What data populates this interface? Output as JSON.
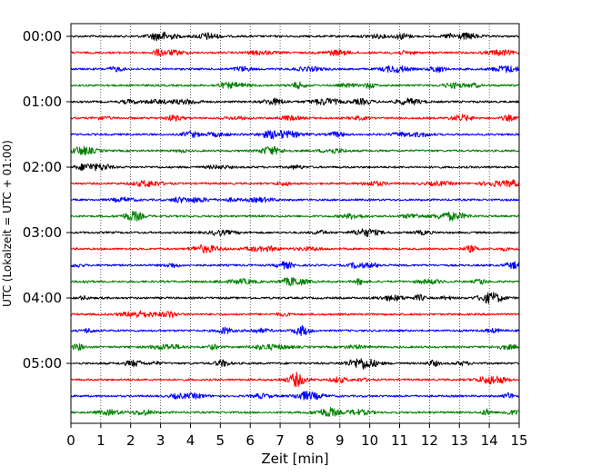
{
  "chart_data": {
    "type": "line",
    "title": "",
    "xlabel": "Zeit  [min]",
    "ylabel": "UTC (Lokalzeit = UTC + 01:00)",
    "xlim": [
      0,
      15
    ],
    "x_ticks": [
      0,
      1,
      2,
      3,
      4,
      5,
      6,
      7,
      8,
      9,
      10,
      11,
      12,
      13,
      14,
      15
    ],
    "x_tick_labels": [
      "0",
      "1",
      "2",
      "3",
      "4",
      "5",
      "6",
      "7",
      "8",
      "9",
      "10",
      "11",
      "12",
      "13",
      "14",
      "15"
    ],
    "y_tick_labels": [
      "00:00",
      "01:00",
      "02:00",
      "03:00",
      "04:00",
      "05:00"
    ],
    "grid": {
      "x": true,
      "y": false,
      "style": "dotted"
    },
    "legend": "none",
    "trace_duration_min": 15,
    "trace_start_times": [
      "00:00",
      "00:15",
      "00:30",
      "00:45",
      "01:00",
      "01:15",
      "01:30",
      "01:45",
      "02:00",
      "02:15",
      "02:30",
      "02:45",
      "03:00",
      "03:15",
      "03:30",
      "03:45",
      "04:00",
      "04:15",
      "04:30",
      "04:45",
      "05:00",
      "05:15",
      "05:30",
      "05:45"
    ],
    "trace_colors": [
      "#000000",
      "#ff0000",
      "#0000ff",
      "#008000"
    ]
  }
}
